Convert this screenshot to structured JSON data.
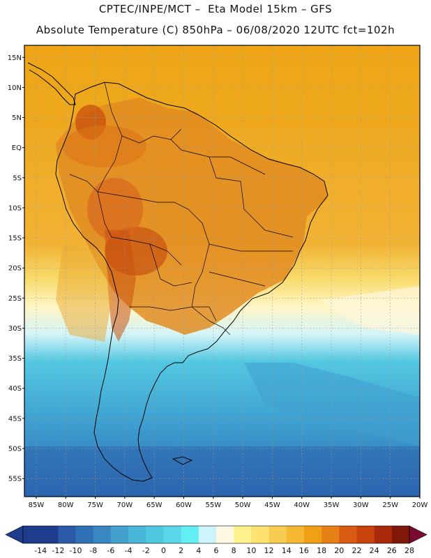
{
  "header": {
    "line1": "CPTEC/INPE/MCT –  Eta Model 15km – GFS",
    "line2": "Absolute Temperature (C) 850hPa – 06/08/2020 12UTC fct=102h"
  },
  "map": {
    "lat_labels": [
      "15N",
      "10N",
      "5N",
      "EQ",
      "5S",
      "10S",
      "15S",
      "20S",
      "25S",
      "30S",
      "35S",
      "40S",
      "45S",
      "50S",
      "55S"
    ],
    "lat_values": [
      15,
      10,
      5,
      0,
      -5,
      -10,
      -15,
      -20,
      -25,
      -30,
      -35,
      -40,
      -45,
      -50,
      -55
    ],
    "lon_labels": [
      "85W",
      "80W",
      "75W",
      "70W",
      "65W",
      "60W",
      "55W",
      "50W",
      "45W",
      "40W",
      "35W",
      "30W",
      "25W",
      "20W"
    ],
    "lon_values": [
      -85,
      -80,
      -75,
      -70,
      -65,
      -60,
      -55,
      -50,
      -45,
      -40,
      -35,
      -30,
      -25,
      -20
    ],
    "lat_range": [
      -58,
      17
    ],
    "lon_range": [
      -87,
      -20
    ]
  },
  "colorbar": {
    "labels": [
      "-14",
      "-12",
      "-10",
      "-8",
      "-6",
      "-4",
      "-2",
      "0",
      "2",
      "4",
      "6",
      "8",
      "10",
      "12",
      "14",
      "16",
      "18",
      "20",
      "22",
      "24",
      "26",
      "28"
    ],
    "colors": [
      "#1e3c8c",
      "#1e3c8c",
      "#2a5aa8",
      "#3070b4",
      "#3a86c0",
      "#44a0cc",
      "#48b6d6",
      "#50c8e0",
      "#5ad8ea",
      "#62eef2",
      "#ccf4fa",
      "#fff8e2",
      "#fff28c",
      "#fde270",
      "#f8cc50",
      "#f4b832",
      "#f0a014",
      "#e88018",
      "#da5c12",
      "#c8420e",
      "#a82a0a",
      "#80180a"
    ]
  }
}
